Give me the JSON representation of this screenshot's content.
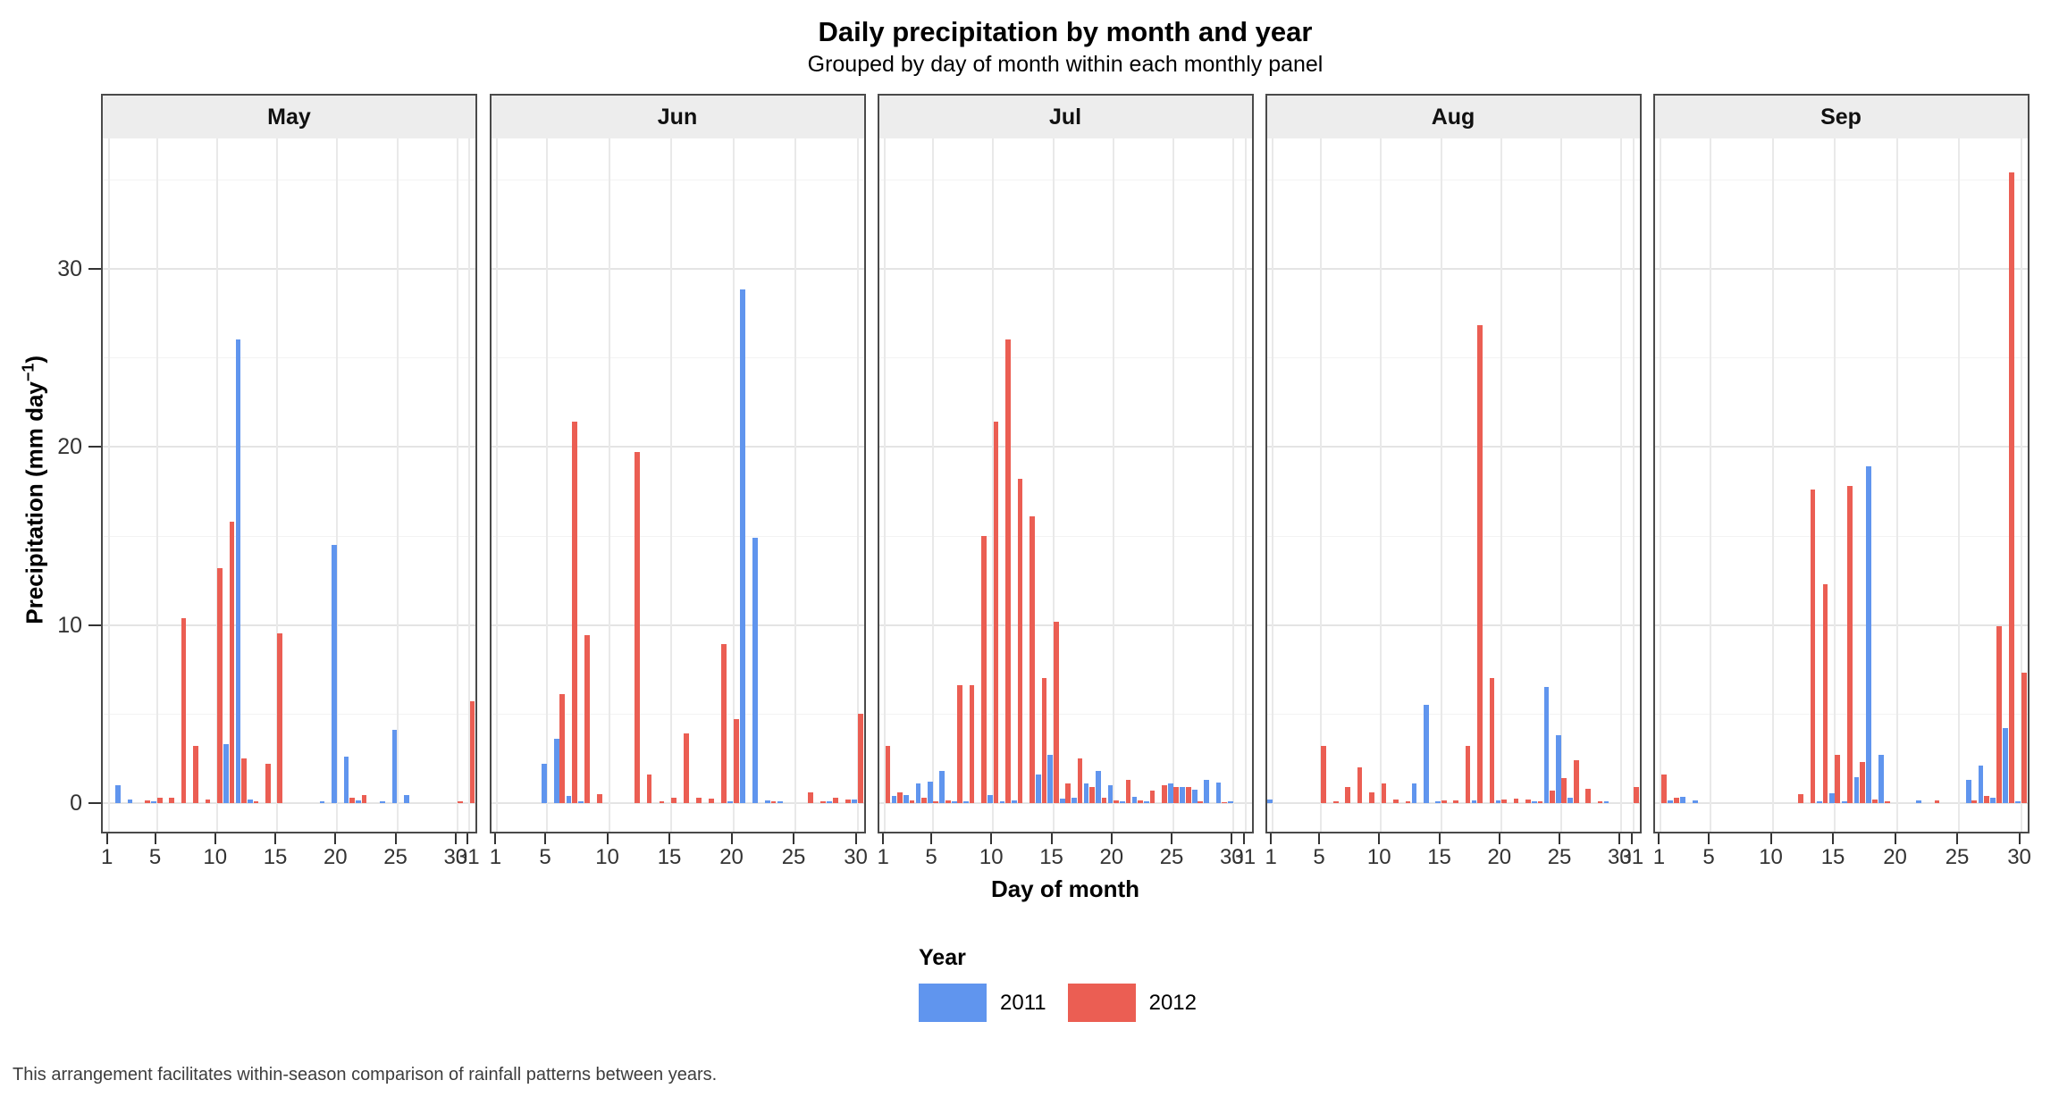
{
  "chart_data": {
    "type": "bar",
    "title": "Daily precipitation by month and year",
    "subtitle": "Grouped by day of month within each monthly panel",
    "caption": "This arrangement facilitates within-season comparison of rainfall patterns between years.",
    "xlabel": "Day of month",
    "ylabel": "Precipitation (mm day⁻¹)",
    "ylabel_parts": {
      "pre": "Precipitation (mm day",
      "sup": "−1",
      "post": ")"
    },
    "ylim": [
      0,
      37
    ],
    "yticks": [
      0,
      10,
      20,
      30
    ],
    "yticks_minor": [
      5,
      15,
      25,
      35
    ],
    "grid": "light gray major gridlines, horizontal at y ticks and vertical at labeled days",
    "legend_position": "bottom-center",
    "legend": {
      "title": "Year",
      "entries": [
        {
          "label": "2011",
          "color": "#6095EE"
        },
        {
          "label": "2012",
          "color": "#EB5E53"
        }
      ]
    },
    "series": [
      "2011",
      "2012"
    ],
    "colors": {
      "2011": "#6095EE",
      "2012": "#EB5E53"
    },
    "panels": [
      {
        "month": "May",
        "days": 31,
        "xticks": [
          1,
          5,
          10,
          15,
          20,
          25,
          30,
          31
        ],
        "bars": [
          [
            2,
            1.0,
            0
          ],
          [
            3,
            0.2,
            0
          ],
          [
            4,
            0,
            0.15
          ],
          [
            5,
            0.1,
            0.3
          ],
          [
            6,
            0,
            0.3
          ],
          [
            7,
            0,
            10.4
          ],
          [
            8,
            0,
            3.2
          ],
          [
            9,
            0,
            0.2
          ],
          [
            10,
            0,
            13.2
          ],
          [
            11,
            3.3,
            15.8
          ],
          [
            12,
            26.0,
            2.5
          ],
          [
            13,
            0.2,
            0.1
          ],
          [
            14,
            0,
            2.2
          ],
          [
            15,
            0,
            9.5
          ],
          [
            19,
            0.1,
            0
          ],
          [
            20,
            14.5,
            0
          ],
          [
            21,
            2.6,
            0.3
          ],
          [
            22,
            0.15,
            0.45
          ],
          [
            24,
            0.1,
            0
          ],
          [
            25,
            4.1,
            0
          ],
          [
            26,
            0.45,
            0
          ],
          [
            30,
            0,
            0.1
          ],
          [
            31,
            0,
            5.7
          ]
        ]
      },
      {
        "month": "Jun",
        "days": 30,
        "xticks": [
          1,
          5,
          10,
          15,
          20,
          25,
          30
        ],
        "bars": [
          [
            5,
            2.2,
            0
          ],
          [
            6,
            3.6,
            6.1
          ],
          [
            7,
            0.4,
            21.4
          ],
          [
            8,
            0.1,
            9.4
          ],
          [
            9,
            0,
            0.5
          ],
          [
            12,
            0,
            19.7
          ],
          [
            13,
            0,
            1.6
          ],
          [
            14,
            0,
            0.1
          ],
          [
            15,
            0,
            0.3
          ],
          [
            16,
            0,
            3.9
          ],
          [
            17,
            0,
            0.3
          ],
          [
            18,
            0,
            0.25
          ],
          [
            19,
            0,
            8.9
          ],
          [
            20,
            0.1,
            4.7
          ],
          [
            21,
            28.8,
            0
          ],
          [
            22,
            14.9,
            0
          ],
          [
            23,
            0.15,
            0.1
          ],
          [
            24,
            0.1,
            0
          ],
          [
            26,
            0,
            0.6
          ],
          [
            27,
            0,
            0.1
          ],
          [
            28,
            0.1,
            0.3
          ],
          [
            29,
            0,
            0.2
          ],
          [
            30,
            0.2,
            5.0
          ]
        ]
      },
      {
        "month": "Jul",
        "days": 31,
        "xticks": [
          1,
          5,
          10,
          15,
          20,
          25,
          30,
          31
        ],
        "bars": [
          [
            1,
            0,
            3.2
          ],
          [
            2,
            0.4,
            0.6
          ],
          [
            3,
            0.45,
            0.15
          ],
          [
            4,
            1.1,
            0.3
          ],
          [
            5,
            1.2,
            0.1
          ],
          [
            6,
            1.8,
            0.15
          ],
          [
            7,
            0.1,
            6.6
          ],
          [
            8,
            0.1,
            6.6
          ],
          [
            9,
            0,
            15.0
          ],
          [
            10,
            0.45,
            21.4
          ],
          [
            11,
            0.1,
            26.0
          ],
          [
            12,
            0.15,
            18.2
          ],
          [
            13,
            0,
            16.1
          ],
          [
            14,
            1.6,
            7.0
          ],
          [
            15,
            2.7,
            10.2
          ],
          [
            16,
            0.25,
            1.1
          ],
          [
            17,
            0.3,
            2.5
          ],
          [
            18,
            1.1,
            0.9
          ],
          [
            19,
            1.8,
            0.3
          ],
          [
            20,
            1.0,
            0.15
          ],
          [
            21,
            0.1,
            1.3
          ],
          [
            22,
            0.35,
            0.15
          ],
          [
            23,
            0.1,
            0.7
          ],
          [
            24,
            0,
            1.0
          ],
          [
            25,
            1.1,
            0.9
          ],
          [
            26,
            0.9,
            0.9
          ],
          [
            27,
            0.75,
            0.1
          ],
          [
            28,
            1.3,
            0
          ],
          [
            29,
            1.15,
            0.05
          ],
          [
            30,
            0.1,
            0
          ]
        ]
      },
      {
        "month": "Aug",
        "days": 31,
        "xticks": [
          1,
          5,
          10,
          15,
          20,
          25,
          30,
          31
        ],
        "bars": [
          [
            1,
            0.2,
            0
          ],
          [
            5,
            0,
            3.2
          ],
          [
            6,
            0,
            0.1
          ],
          [
            7,
            0,
            0.9
          ],
          [
            8,
            0,
            2.0
          ],
          [
            9,
            0,
            0.6
          ],
          [
            10,
            0,
            1.1
          ],
          [
            11,
            0,
            0.2
          ],
          [
            12,
            0,
            0.1
          ],
          [
            13,
            1.1,
            0
          ],
          [
            14,
            5.5,
            0
          ],
          [
            15,
            0.1,
            0.15
          ],
          [
            16,
            0,
            0.15
          ],
          [
            17,
            0,
            3.2
          ],
          [
            18,
            0.15,
            26.8
          ],
          [
            19,
            0,
            7.0
          ],
          [
            20,
            0.15,
            0.2
          ],
          [
            21,
            0,
            0.25
          ],
          [
            22,
            0,
            0.2
          ],
          [
            23,
            0.1,
            0.1
          ],
          [
            24,
            6.5,
            0.7
          ],
          [
            25,
            3.8,
            1.4
          ],
          [
            26,
            0.3,
            2.4
          ],
          [
            27,
            0,
            0.8
          ],
          [
            28,
            0,
            0.1
          ],
          [
            29,
            0.1,
            0
          ],
          [
            31,
            0,
            0.9
          ]
        ]
      },
      {
        "month": "Sep",
        "days": 30,
        "xticks": [
          1,
          5,
          10,
          15,
          20,
          25,
          30
        ],
        "bars": [
          [
            1,
            0,
            1.6
          ],
          [
            2,
            0.15,
            0.3
          ],
          [
            3,
            0.35,
            0
          ],
          [
            4,
            0.15,
            0
          ],
          [
            12,
            0,
            0.5
          ],
          [
            13,
            0,
            17.6
          ],
          [
            14,
            0.1,
            12.3
          ],
          [
            15,
            0.55,
            2.7
          ],
          [
            16,
            0.1,
            17.8
          ],
          [
            17,
            1.45,
            2.3
          ],
          [
            18,
            18.9,
            0.2
          ],
          [
            19,
            2.7,
            0.1
          ],
          [
            22,
            0.15,
            0
          ],
          [
            23,
            0,
            0.15
          ],
          [
            26,
            1.3,
            0.15
          ],
          [
            27,
            2.1,
            0.4
          ],
          [
            28,
            0.3,
            9.9
          ],
          [
            29,
            4.2,
            35.4
          ],
          [
            30,
            0.1,
            7.3
          ]
        ]
      }
    ]
  }
}
